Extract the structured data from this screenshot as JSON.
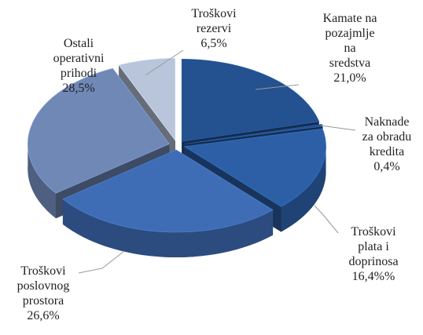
{
  "chart_data": {
    "type": "pie3d",
    "categories": [
      "Kamate na pozajmlje na sredstva",
      "Naknade za obradu kredita",
      "Troškovi plata i doprinosa",
      "Troškovi poslovnog prostora",
      "Ostali operativni prihodi",
      "Troškovi rezervi"
    ],
    "values": [
      21.0,
      0.4,
      16.4,
      26.6,
      28.5,
      6.5
    ],
    "value_labels": [
      "21,0%",
      "0,4%",
      "16,4%%",
      "26,6%",
      "28,5%",
      "6,5%"
    ],
    "colors": [
      "#24518f",
      "#24518f",
      "#2d5fa6",
      "#3f6db5",
      "#7088b6",
      "#b9c5da"
    ]
  }
}
